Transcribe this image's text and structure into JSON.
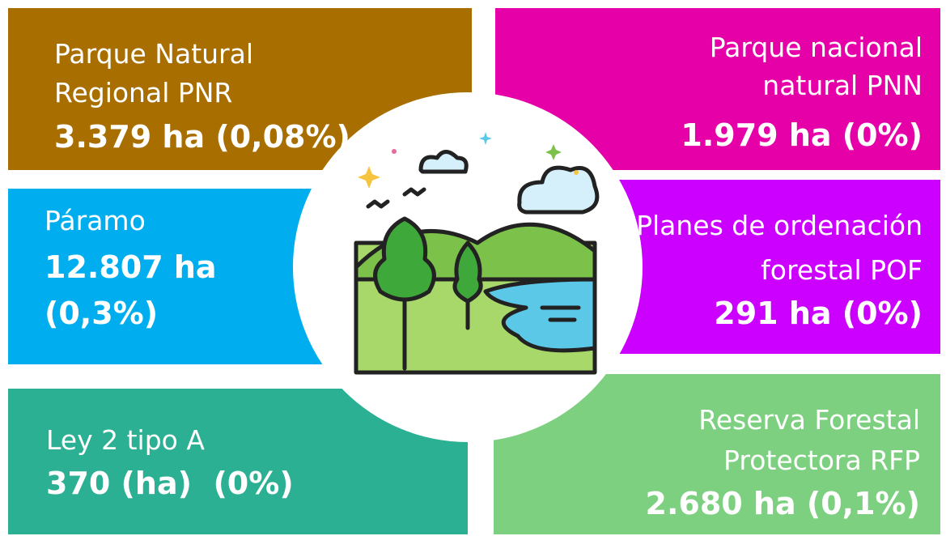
{
  "panels": [
    {
      "lines": [
        "Parque Natural",
        "Regional PNR"
      ],
      "value": [
        "3.379 ha (0,08%)"
      ]
    },
    {
      "lines": [
        "Parque nacional",
        "natural PNN"
      ],
      "value": [
        "1.979 ha (0%)"
      ]
    },
    {
      "lines": [
        "Páramo"
      ],
      "value": [
        "12.807 ha",
        "(0,3%)"
      ]
    },
    {
      "lines": [
        "Planes de ordenación",
        "forestal POF"
      ],
      "value": [
        "291 ha (0%)"
      ]
    },
    {
      "lines": [
        "Ley 2 tipo A"
      ],
      "value": [
        "370 (ha)  (0%)"
      ]
    },
    {
      "lines": [
        "Reserva Forestal",
        "Protectora RFP"
      ],
      "value": [
        "2.680 ha (0,1%)"
      ]
    }
  ]
}
